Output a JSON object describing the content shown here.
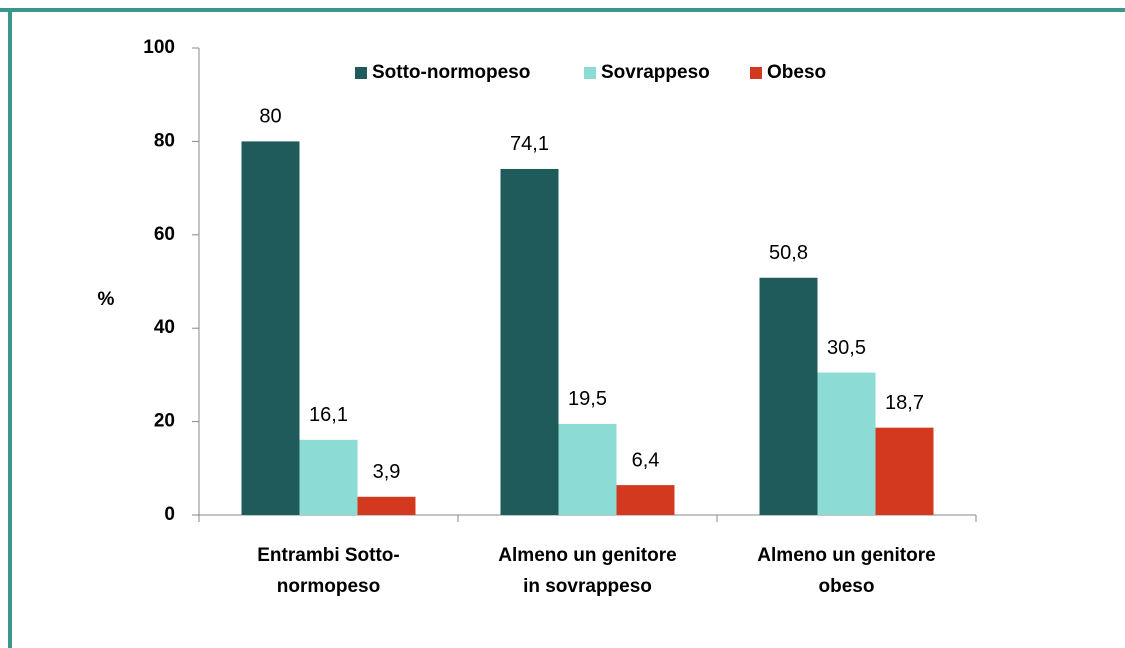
{
  "chart_data": {
    "type": "bar",
    "y_label": "%",
    "categories": [
      [
        "Entrambi Sotto-",
        "normopeso"
      ],
      [
        "Almeno un genitore",
        "in sovrappeso"
      ],
      [
        "Almeno un genitore",
        "obeso"
      ]
    ],
    "series": [
      {
        "name": "Sotto-normopeso",
        "color": "#1f5b5b",
        "values": [
          80,
          74.1,
          50.8
        ],
        "value_labels": [
          "80",
          "74,1",
          "50,8"
        ]
      },
      {
        "name": "Sovrappeso",
        "color": "#8ddbd5",
        "values": [
          16.1,
          19.5,
          30.5
        ],
        "value_labels": [
          "16,1",
          "19,5",
          "30,5"
        ]
      },
      {
        "name": "Obeso",
        "color": "#d3391f",
        "values": [
          3.9,
          6.4,
          18.7
        ],
        "value_labels": [
          "3,9",
          "6,4",
          "18,7"
        ]
      }
    ],
    "ylim": [
      0,
      100
    ],
    "yticks": [
      0,
      20,
      40,
      60,
      80,
      100
    ],
    "legend": "top"
  }
}
